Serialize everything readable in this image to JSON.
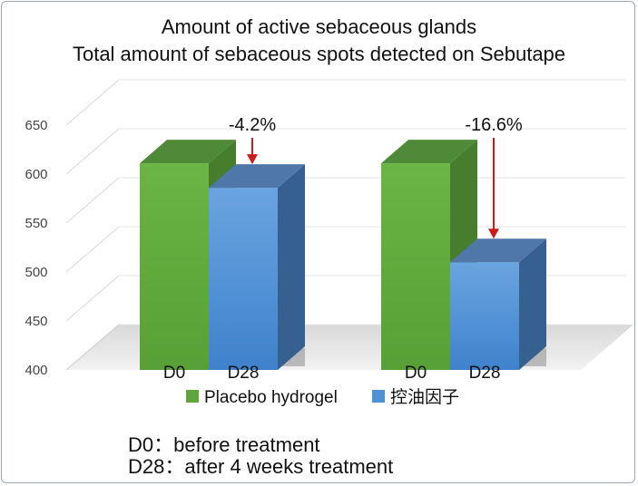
{
  "chart_data": {
    "type": "bar",
    "title": "Amount of active sebaceous glands",
    "subtitle": "Total amount of sebaceous spots detected on Sebutape",
    "categories": [
      "D0",
      "D28",
      "D0",
      "D28"
    ],
    "groups": [
      {
        "bars": [
          {
            "label": "D0",
            "series": "Placebo hydrogel",
            "value": 611
          },
          {
            "label": "D28",
            "series": "控油因子",
            "value": 586
          }
        ],
        "annotation": "-4.2%"
      },
      {
        "bars": [
          {
            "label": "D0",
            "series": "Placebo hydrogel",
            "value": 611
          },
          {
            "label": "D28",
            "series": "控油因子",
            "value": 510
          }
        ],
        "annotation": "-16.6%"
      }
    ],
    "legend": [
      {
        "name": "Placebo hydrogel",
        "color": "#5ea53c"
      },
      {
        "name": "控油因子",
        "color": "#4f8fd4"
      }
    ],
    "legend_position": "bottom",
    "yticks": [
      400,
      450,
      500,
      550,
      600,
      650
    ],
    "ylim": [
      400,
      650
    ],
    "grid": true,
    "annotation_color": "#cc1b1b"
  },
  "notes": [
    "D0：before treatment",
    "D28：after 4 weeks treatment"
  ]
}
